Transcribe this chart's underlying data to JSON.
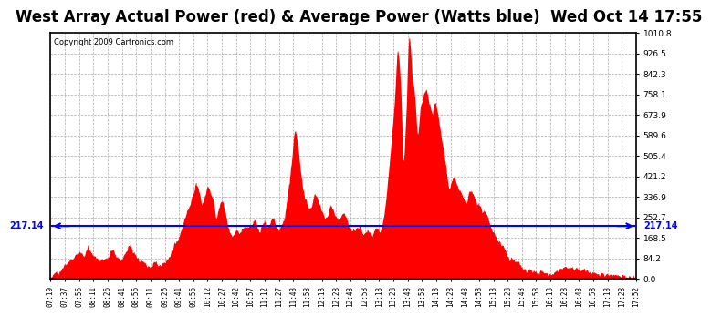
{
  "title": "West Array Actual Power (red) & Average Power (Watts blue)  Wed Oct 14 17:55",
  "copyright": "Copyright 2009 Cartronics.com",
  "avg_value": 217.14,
  "y_max": 1010.8,
  "y_ticks": [
    0.0,
    84.2,
    168.5,
    252.7,
    336.9,
    421.2,
    505.4,
    589.6,
    673.9,
    758.1,
    842.3,
    926.5,
    1010.8
  ],
  "x_labels": [
    "07:19",
    "07:37",
    "07:56",
    "08:11",
    "08:26",
    "08:41",
    "08:56",
    "09:11",
    "09:26",
    "09:41",
    "09:56",
    "10:12",
    "10:27",
    "10:42",
    "10:57",
    "11:12",
    "11:27",
    "11:43",
    "11:58",
    "12:13",
    "12:28",
    "12:43",
    "12:58",
    "13:13",
    "13:28",
    "13:43",
    "13:58",
    "14:13",
    "14:28",
    "14:43",
    "14:58",
    "15:13",
    "15:28",
    "15:43",
    "15:58",
    "16:13",
    "16:28",
    "16:43",
    "16:58",
    "17:13",
    "17:28",
    "17:52"
  ],
  "background_color": "#ffffff",
  "plot_bg_color": "#ffffff",
  "grid_color": "#aaaaaa",
  "bar_color": "#ff0000",
  "line_color": "#0000ff",
  "title_fontsize": 12,
  "border_color": "#000000"
}
